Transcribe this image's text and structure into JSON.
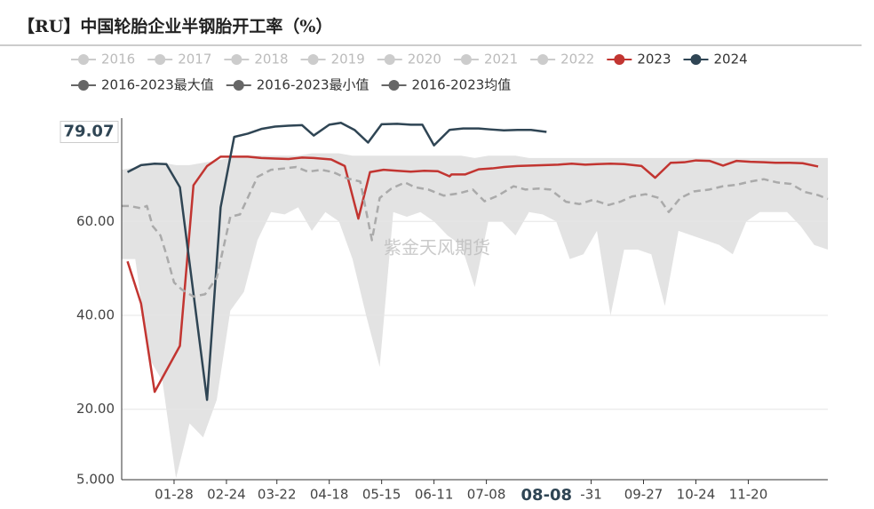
{
  "chart_data": {
    "type": "line",
    "title": "【RU】中国轮胎企业半钢胎开工率（%）",
    "watermark": "紫金天风期货",
    "xlim": [
      1,
      365
    ],
    "xticks": [
      {
        "value": 28,
        "label": "01-28"
      },
      {
        "value": 55,
        "label": "02-24"
      },
      {
        "value": 81,
        "label": "03-22"
      },
      {
        "value": 108,
        "label": "04-18"
      },
      {
        "value": 135,
        "label": "05-15"
      },
      {
        "value": 162,
        "label": "06-11"
      },
      {
        "value": 189,
        "label": "07-08"
      },
      {
        "value": 243,
        "label": "-31"
      },
      {
        "value": 270,
        "label": "09-27"
      },
      {
        "value": 297,
        "label": "10-24"
      },
      {
        "value": 324,
        "label": "11-20"
      }
    ],
    "highlight_x": {
      "value": 220,
      "label": "08-08"
    },
    "ylim": [
      5,
      82
    ],
    "yticks": [
      {
        "value": 5,
        "label": "5.000"
      },
      {
        "value": 20,
        "label": "20.00"
      },
      {
        "value": 40,
        "label": "40.00"
      },
      {
        "value": 60,
        "label": "60.00"
      }
    ],
    "highlight_y": {
      "value": 79.07,
      "label": "79.07"
    },
    "grid": true,
    "legend_inactive": [
      {
        "name": "2016",
        "color": "#cccccc"
      },
      {
        "name": "2017",
        "color": "#cccccc"
      },
      {
        "name": "2018",
        "color": "#cccccc"
      },
      {
        "name": "2019",
        "color": "#cccccc"
      },
      {
        "name": "2020",
        "color": "#cccccc"
      },
      {
        "name": "2021",
        "color": "#cccccc"
      },
      {
        "name": "2022",
        "color": "#cccccc"
      }
    ],
    "series": [
      {
        "name": "2023",
        "color": "#c23531",
        "style": "solid",
        "x": [
          4,
          11,
          18,
          31,
          38,
          45,
          52,
          59,
          66,
          73,
          80,
          87,
          94,
          100,
          109,
          116,
          123,
          129,
          136,
          143,
          150,
          157,
          164,
          170,
          171,
          178,
          185,
          192,
          198,
          205,
          212,
          219,
          226,
          233,
          240,
          246,
          253,
          260,
          269,
          276,
          284,
          291,
          297,
          304,
          311,
          318,
          325,
          332,
          338,
          345,
          352,
          360
        ],
        "values": [
          51.5,
          42.5,
          23.7,
          33.5,
          67.7,
          71.8,
          73.8,
          73.8,
          73.8,
          73.5,
          73.4,
          73.3,
          73.6,
          73.5,
          73.2,
          71.8,
          60.6,
          70.5,
          71,
          70.8,
          70.6,
          70.8,
          70.7,
          69.6,
          70,
          70,
          71.1,
          71.3,
          71.6,
          71.8,
          71.9,
          72,
          72.1,
          72.3,
          72.1,
          72.2,
          72.3,
          72.2,
          71.8,
          69.3,
          72.5,
          72.6,
          73,
          72.9,
          71.9,
          72.9,
          72.7,
          72.6,
          72.5,
          72.5,
          72.4,
          71.7
        ]
      },
      {
        "name": "2024",
        "color": "#2f4554",
        "style": "solid",
        "x": [
          4,
          11,
          18,
          24,
          31,
          45,
          52,
          59,
          66,
          73,
          80,
          87,
          94,
          100,
          108,
          114,
          121,
          128,
          135,
          143,
          150,
          156,
          162,
          170,
          177,
          185,
          191,
          198,
          205,
          212,
          220
        ],
        "values": [
          70.5,
          72,
          72.3,
          72.2,
          67.3,
          22,
          63,
          78,
          78.7,
          79.7,
          80.2,
          80.4,
          80.5,
          78.3,
          80.6,
          81,
          79.5,
          76.8,
          80.7,
          80.8,
          80.6,
          80.6,
          76.2,
          79.5,
          79.8,
          79.8,
          79.6,
          79.4,
          79.5,
          79.5,
          79.07
        ]
      },
      {
        "name": "2016-2023最大值",
        "color": "#e3e3e3",
        "legend_color": "#666666",
        "style": "band-top",
        "x": [
          1,
          8,
          15,
          22,
          29,
          36,
          43,
          50,
          57,
          64,
          71,
          78,
          85,
          92,
          99,
          106,
          113,
          120,
          127,
          134,
          141,
          148,
          155,
          162,
          169,
          176,
          183,
          190,
          197,
          204,
          211,
          218,
          225,
          232,
          239,
          246,
          253,
          260,
          267,
          274,
          281,
          288,
          295,
          302,
          309,
          316,
          323,
          330,
          337,
          344,
          351,
          358,
          365
        ],
        "values": [
          71,
          71.5,
          72,
          72.5,
          72,
          72,
          72.5,
          73,
          73.5,
          74,
          74,
          74,
          74,
          74,
          74.5,
          74.5,
          74.5,
          74,
          74,
          74,
          74,
          74,
          74,
          74,
          74,
          74,
          73.5,
          74,
          74,
          74,
          73.5,
          73.5,
          73.5,
          73.5,
          73.5,
          73.5,
          73.5,
          73.5,
          73.5,
          73.5,
          73.5,
          73.5,
          73.5,
          73.5,
          73.5,
          73.5,
          73.5,
          73.5,
          73.5,
          73.5,
          73.5,
          73.5,
          73.5
        ]
      },
      {
        "name": "2016-2023最小值",
        "color": "#ffffff",
        "legend_color": "#666666",
        "style": "band-bottom",
        "x": [
          1,
          8,
          15,
          22,
          29,
          36,
          43,
          50,
          57,
          64,
          71,
          78,
          85,
          92,
          99,
          106,
          113,
          120,
          127,
          134,
          141,
          148,
          155,
          162,
          169,
          176,
          183,
          190,
          197,
          204,
          211,
          218,
          225,
          232,
          239,
          246,
          253,
          260,
          267,
          274,
          281,
          288,
          295,
          302,
          309,
          316,
          323,
          330,
          337,
          344,
          351,
          358,
          365
        ],
        "values": [
          52,
          52,
          31,
          26,
          5.3,
          17,
          14,
          22,
          41,
          45,
          56,
          62,
          61.5,
          63,
          58,
          62,
          60,
          52,
          40,
          29,
          62,
          61,
          62,
          60,
          57,
          55,
          46,
          60,
          60,
          57,
          62,
          61.5,
          60,
          52,
          53,
          58,
          40,
          54,
          54,
          53,
          42,
          58,
          57,
          56,
          55,
          53,
          60,
          62,
          62,
          62,
          59,
          55,
          54
        ]
      },
      {
        "name": "2016-2023均值",
        "color": "#aaaaaa",
        "legend_color": "#666666",
        "style": "dashed",
        "x": [
          1,
          5,
          11,
          14,
          17,
          21,
          24,
          28,
          32,
          38,
          44,
          50,
          57,
          62,
          71,
          78,
          85,
          91,
          97,
          104,
          110,
          117,
          124,
          130,
          134,
          140,
          147,
          152,
          159,
          167,
          175,
          182,
          188,
          195,
          203,
          209,
          216,
          222,
          230,
          237,
          244,
          252,
          258,
          264,
          271,
          278,
          283,
          289,
          296,
          304,
          311,
          318,
          325,
          332,
          339,
          346,
          353,
          360,
          365
        ],
        "values": [
          63.3,
          63.3,
          62.8,
          63.3,
          59,
          57,
          53,
          47,
          45.5,
          44,
          44.5,
          48,
          61,
          61.5,
          69.5,
          71,
          71.3,
          71.6,
          70.6,
          71,
          70.5,
          69.2,
          68.5,
          56,
          65,
          67,
          68.3,
          67.3,
          66.8,
          65.5,
          66,
          66.8,
          64.3,
          65.5,
          67.5,
          66.8,
          67,
          66.8,
          64.2,
          63.7,
          64.6,
          63.5,
          64.2,
          65.3,
          65.8,
          65,
          62,
          65,
          66.4,
          66.8,
          67.5,
          67.8,
          68.5,
          69,
          68.3,
          68,
          66.3,
          65.6,
          64.8
        ]
      }
    ]
  }
}
